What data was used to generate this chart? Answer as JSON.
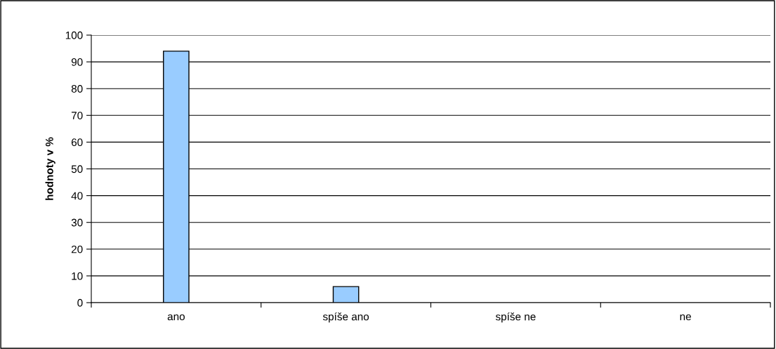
{
  "chart_data": {
    "type": "bar",
    "ylabel": "hodnoty v %",
    "categories": [
      "ano",
      "spíše ano",
      "spíše ne",
      "ne"
    ],
    "values": [
      94,
      6,
      0,
      0
    ],
    "color": "#99ccff",
    "ylim": [
      0,
      100
    ],
    "yticks": [
      0,
      10,
      20,
      30,
      40,
      50,
      60,
      70,
      80,
      90,
      100
    ],
    "grid": "y",
    "legend": false
  }
}
